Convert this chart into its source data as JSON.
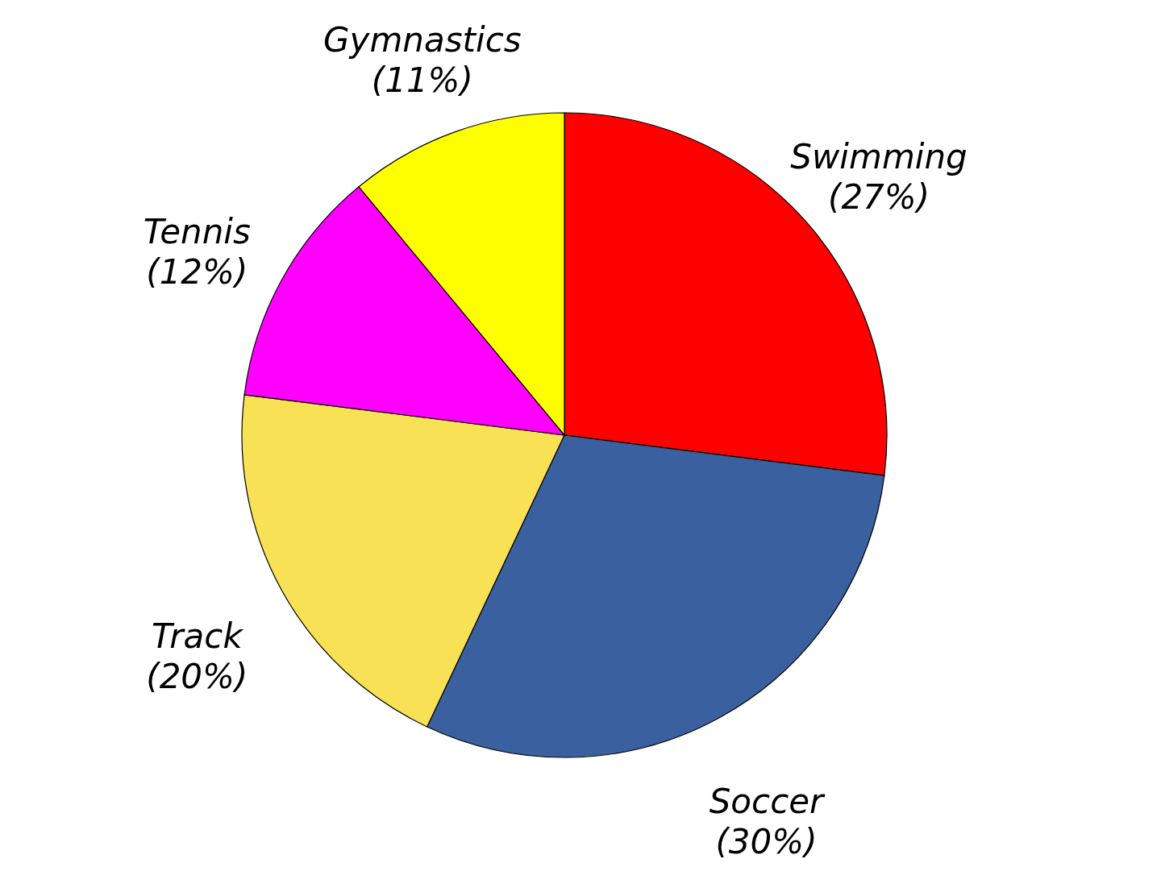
{
  "chart_data": {
    "type": "pie",
    "categories": [
      "Swimming",
      "Soccer",
      "Track",
      "Tennis",
      "Gymnastics"
    ],
    "values": [
      27,
      30,
      20,
      12,
      11
    ],
    "colors": [
      "#ff0000",
      "#3a60a0",
      "#f9e155",
      "#ff00ff",
      "#ffff00"
    ],
    "value_labels": [
      "(27%)",
      "(30%)",
      "(20%)",
      "(12%)",
      "(11%)"
    ],
    "legend": false
  }
}
